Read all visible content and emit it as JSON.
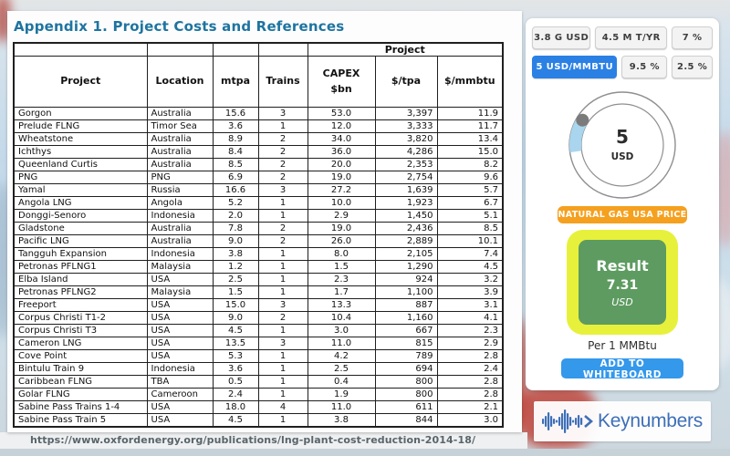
{
  "page": {
    "title": "Appendix 1. Project Costs and References",
    "source_url": "https://www.oxfordenergy.org/publications/lng-plant-cost-reduction-2014-18/"
  },
  "table": {
    "group_header": "Project",
    "columns": [
      "Project",
      "Location",
      "mtpa",
      "Trains",
      "CAPEX\n$bn",
      "$/tpa",
      "$/mmbtu"
    ],
    "rows": [
      [
        "Gorgon",
        "Australia",
        "15.6",
        "3",
        "53.0",
        "3,397",
        "11.9"
      ],
      [
        "Prelude FLNG",
        "Timor Sea",
        "3.6",
        "1",
        "12.0",
        "3,333",
        "11.7"
      ],
      [
        "Wheatstone",
        "Australia",
        "8.9",
        "2",
        "34.0",
        "3,820",
        "13.4"
      ],
      [
        "Ichthys",
        "Australia",
        "8.4",
        "2",
        "36.0",
        "4,286",
        "15.0"
      ],
      [
        "Queenland Curtis",
        "Australia",
        "8.5",
        "2",
        "20.0",
        "2,353",
        "8.2"
      ],
      [
        "PNG",
        "PNG",
        "6.9",
        "2",
        "19.0",
        "2,754",
        "9.6"
      ],
      [
        "Yamal",
        "Russia",
        "16.6",
        "3",
        "27.2",
        "1,639",
        "5.7"
      ],
      [
        "Angola LNG",
        "Angola",
        "5.2",
        "1",
        "10.0",
        "1,923",
        "6.7"
      ],
      [
        "Donggi-Senoro",
        "Indonesia",
        "2.0",
        "1",
        "2.9",
        "1,450",
        "5.1"
      ],
      [
        "Gladstone",
        "Australia",
        "7.8",
        "2",
        "19.0",
        "2,436",
        "8.5"
      ],
      [
        "Pacific LNG",
        "Australia",
        "9.0",
        "2",
        "26.0",
        "2,889",
        "10.1"
      ],
      [
        "Tangguh Expansion",
        "Indonesia",
        "3.8",
        "1",
        "8.0",
        "2,105",
        "7.4"
      ],
      [
        "Petronas PFLNG1",
        "Malaysia",
        "1.2",
        "1",
        "1.5",
        "1,290",
        "4.5"
      ],
      [
        "Elba Island",
        "USA",
        "2.5",
        "1",
        "2.3",
        "924",
        "3.2"
      ],
      [
        "Petronas PFLNG2",
        "Malaysia",
        "1.5",
        "1",
        "1.7",
        "1,100",
        "3.9"
      ],
      [
        "Freeport",
        "USA",
        "15.0",
        "3",
        "13.3",
        "887",
        "3.1"
      ],
      [
        "Corpus Christi T1-2",
        "USA",
        "9.0",
        "2",
        "10.4",
        "1,160",
        "4.1"
      ],
      [
        "Corpus Christi T3",
        "USA",
        "4.5",
        "1",
        "3.0",
        "667",
        "2.3"
      ],
      [
        "Cameron LNG",
        "USA",
        "13.5",
        "3",
        "11.0",
        "815",
        "2.9"
      ],
      [
        "Cove Point",
        "USA",
        "5.3",
        "1",
        "4.2",
        "789",
        "2.8"
      ],
      [
        "Bintulu Train 9",
        "Indonesia",
        "3.6",
        "1",
        "2.5",
        "694",
        "2.4"
      ],
      [
        "Caribbean FLNG",
        "TBA",
        "0.5",
        "1",
        "0.4",
        "800",
        "2.8"
      ],
      [
        "Golar FLNG",
        "Cameroon",
        "2.4",
        "1",
        "1.9",
        "800",
        "2.8"
      ],
      [
        "Sabine Pass Trains 1-4",
        "USA",
        "18.0",
        "4",
        "11.0",
        "611",
        "2.1"
      ],
      [
        "Sabine Pass Train 5",
        "USA",
        "4.5",
        "1",
        "3.8",
        "844",
        "3.0"
      ]
    ]
  },
  "calculator": {
    "inputs": [
      {
        "label": "3.8 G USD",
        "selected": false
      },
      {
        "label": "4.5 M T/YR",
        "selected": false
      },
      {
        "label": "7 %",
        "selected": false
      },
      {
        "label": "5 USD/MMBTU",
        "selected": true
      },
      {
        "label": "9.5 %",
        "selected": false
      },
      {
        "label": "2.5 %",
        "selected": false
      }
    ],
    "dial": {
      "value": "5",
      "unit": "USD"
    },
    "price_button_label": "NATURAL GAS USA PRICE",
    "result": {
      "label": "Result",
      "value": "7.31",
      "unit": "USD",
      "per_label": "Per 1 MMBtu"
    },
    "whiteboard_button_label": "ADD TO WHITEBOARD"
  },
  "branding": {
    "logo_text": "Keynumbers"
  },
  "colors": {
    "accent_blue": "#2b80e4",
    "orange": "#f5a01f",
    "result_green": "#5d9b60",
    "result_yellow": "#e7f13b",
    "whiteboard_blue": "#3498eb",
    "logo_blue": "#3e6fb8",
    "title_teal": "#1e74a0",
    "gauge_arc": "#a9d5ee"
  }
}
